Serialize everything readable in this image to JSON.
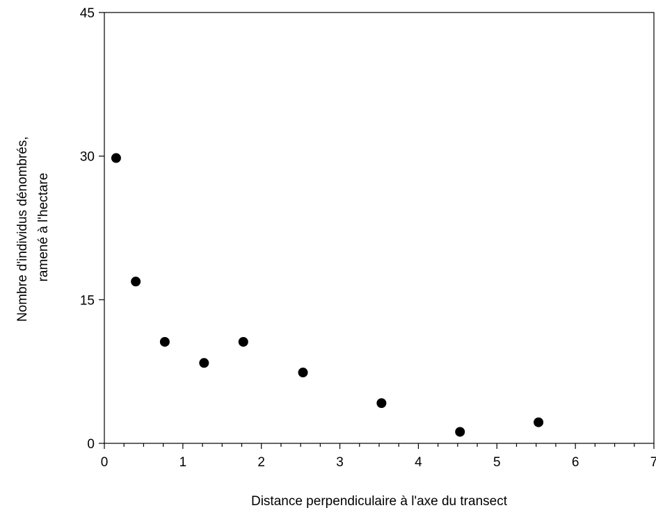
{
  "chart_data": {
    "type": "scatter",
    "title": "",
    "xlabel": "Distance perpendiculaire à l'axe du transect",
    "ylabel_lines": [
      "Nombre d'individus dénombrés,",
      "ramené à l'hectare"
    ],
    "xlim": [
      0,
      7
    ],
    "ylim": [
      0,
      45
    ],
    "xticks": [
      0,
      1,
      2,
      3,
      4,
      5,
      6,
      7
    ],
    "xtick_labels": [
      "0",
      "1",
      "2",
      "3",
      "4",
      "5",
      "6",
      "7"
    ],
    "xminor_step": 0.25,
    "yticks": [
      0,
      15,
      30,
      45
    ],
    "ytick_labels": [
      "0",
      "15",
      "30",
      "45"
    ],
    "grid": false,
    "legend": "none",
    "marker_color": "#000000",
    "points": [
      {
        "x": 0.15,
        "y": 29.8
      },
      {
        "x": 0.4,
        "y": 16.9
      },
      {
        "x": 0.77,
        "y": 10.6
      },
      {
        "x": 1.27,
        "y": 8.4
      },
      {
        "x": 1.77,
        "y": 10.6
      },
      {
        "x": 2.53,
        "y": 7.4
      },
      {
        "x": 3.53,
        "y": 4.2
      },
      {
        "x": 4.53,
        "y": 1.2
      },
      {
        "x": 5.53,
        "y": 2.2
      }
    ]
  }
}
